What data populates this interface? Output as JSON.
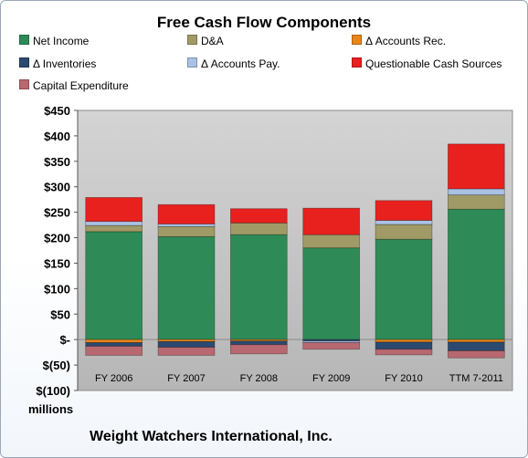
{
  "chart_data": {
    "type": "bar",
    "stacked": true,
    "title": "Free Cash Flow Components",
    "categories": [
      "FY 2006",
      "FY 2007",
      "FY 2008",
      "FY 2009",
      "FY 2010",
      "TTM 7-2011"
    ],
    "ylim": [
      -100,
      450
    ],
    "yticks": [
      -100,
      -50,
      0,
      50,
      100,
      150,
      200,
      250,
      300,
      350,
      400,
      450
    ],
    "ytick_labels": [
      "$(100)",
      "$(50)",
      "$-",
      "$50",
      "$100",
      "$150",
      "$200",
      "$250",
      "$300",
      "$350",
      "$400",
      "$450"
    ],
    "grid": false,
    "legend_position": "top",
    "series": [
      {
        "name": "Net Income",
        "color": "#2e8b57",
        "values": [
          212,
          202,
          206,
          180,
          197,
          256
        ]
      },
      {
        "name": "D&A",
        "color": "#a09a66",
        "values": [
          12,
          20,
          23,
          26,
          29,
          28
        ]
      },
      {
        "name": "Δ Accounts Rec.",
        "color": "#e8861a",
        "values": [
          -6,
          -4,
          -3,
          0,
          -5,
          -5
        ]
      },
      {
        "name": "Δ Inventories",
        "color": "#2c4a70",
        "values": [
          -7,
          -11,
          -7,
          -3,
          -14,
          -17
        ]
      },
      {
        "name": "Δ Accounts Pay.",
        "color": "#a9c2e4",
        "values": [
          8,
          5,
          0,
          -3,
          8,
          12
        ]
      },
      {
        "name": "Questionable Cash Sources",
        "color": "#e8201e",
        "values": [
          47,
          38,
          28,
          52,
          39,
          88
        ]
      },
      {
        "name": "Capital Expenditure",
        "color": "#b86870",
        "values": [
          -18,
          -16,
          -18,
          -13,
          -11,
          -14
        ]
      }
    ]
  },
  "labels": {
    "units": "millions",
    "company": "Weight Watchers International, Inc."
  }
}
